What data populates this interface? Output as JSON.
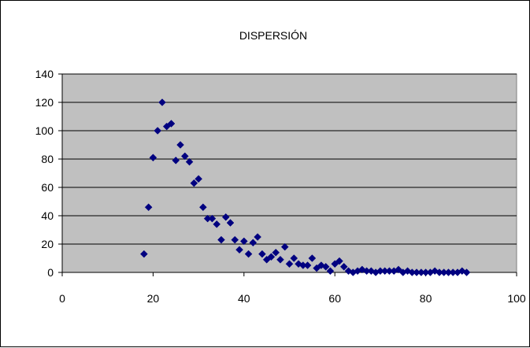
{
  "colors": {
    "plot_background": "#c0c0c0",
    "marker": "#000080",
    "gridline": "#000000"
  },
  "chart_data": {
    "type": "scatter",
    "title": "DISPERSIÓN",
    "xlabel": "",
    "ylabel": "",
    "xlim": [
      0,
      100
    ],
    "ylim": [
      0,
      140
    ],
    "x_ticks": [
      0,
      20,
      40,
      60,
      80,
      100
    ],
    "y_ticks": [
      0,
      20,
      40,
      60,
      80,
      100,
      120,
      140
    ],
    "x_tick_labels": [
      "0",
      "20",
      "40",
      "60",
      "80",
      "100"
    ],
    "y_tick_labels": [
      "0",
      "20",
      "40",
      "60",
      "80",
      "100",
      "120",
      "140"
    ],
    "grid": "horizontal major gridlines",
    "legend": "none",
    "marker": "diamond",
    "series": [
      {
        "points": [
          [
            18,
            13
          ],
          [
            19,
            46
          ],
          [
            20,
            81
          ],
          [
            21,
            100
          ],
          [
            22,
            120
          ],
          [
            23,
            103
          ],
          [
            24,
            105
          ],
          [
            25,
            79
          ],
          [
            26,
            90
          ],
          [
            27,
            82
          ],
          [
            28,
            78
          ],
          [
            29,
            63
          ],
          [
            30,
            66
          ],
          [
            31,
            46
          ],
          [
            32,
            38
          ],
          [
            33,
            38
          ],
          [
            34,
            34
          ],
          [
            35,
            23
          ],
          [
            36,
            39
          ],
          [
            37,
            35
          ],
          [
            38,
            23
          ],
          [
            39,
            16
          ],
          [
            40,
            22
          ],
          [
            41,
            13
          ],
          [
            42,
            21
          ],
          [
            43,
            25
          ],
          [
            44,
            13
          ],
          [
            45,
            9
          ],
          [
            46,
            11
          ],
          [
            47,
            14
          ],
          [
            48,
            9
          ],
          [
            49,
            18
          ],
          [
            50,
            6
          ],
          [
            51,
            10
          ],
          [
            52,
            6
          ],
          [
            53,
            5
          ],
          [
            54,
            5
          ],
          [
            55,
            10
          ],
          [
            56,
            3
          ],
          [
            57,
            5
          ],
          [
            58,
            4
          ],
          [
            59,
            1
          ],
          [
            60,
            6
          ],
          [
            61,
            8
          ],
          [
            62,
            4
          ],
          [
            63,
            1
          ],
          [
            64,
            0
          ],
          [
            65,
            1
          ],
          [
            66,
            2
          ],
          [
            67,
            1
          ],
          [
            68,
            1
          ],
          [
            69,
            0
          ],
          [
            70,
            1
          ],
          [
            71,
            1
          ],
          [
            72,
            1
          ],
          [
            73,
            1
          ],
          [
            74,
            2
          ],
          [
            75,
            0
          ],
          [
            76,
            1
          ],
          [
            77,
            0
          ],
          [
            78,
            0
          ],
          [
            79,
            0
          ],
          [
            80,
            0
          ],
          [
            81,
            0
          ],
          [
            82,
            1
          ],
          [
            83,
            0
          ],
          [
            84,
            0
          ],
          [
            85,
            0
          ],
          [
            86,
            0
          ],
          [
            87,
            0
          ],
          [
            88,
            1
          ],
          [
            89,
            0
          ]
        ]
      }
    ]
  }
}
